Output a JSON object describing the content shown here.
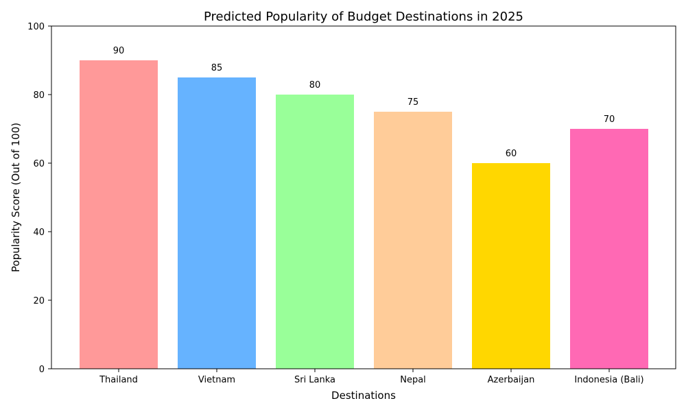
{
  "chart_data": {
    "type": "bar",
    "title": "Predicted Popularity of Budget Destinations in 2025",
    "xlabel": "Destinations",
    "ylabel": "Popularity Score (Out of 100)",
    "ylim": [
      0,
      100
    ],
    "yticks": [
      0,
      20,
      40,
      60,
      80,
      100
    ],
    "grid": false,
    "categories": [
      "Thailand",
      "Vietnam",
      "Sri Lanka",
      "Nepal",
      "Azerbaijan",
      "Indonesia (Bali)"
    ],
    "values": [
      90,
      85,
      80,
      75,
      60,
      70
    ],
    "colors": [
      "#ff9999",
      "#66b3ff",
      "#99ff99",
      "#ffcc99",
      "#ffd700",
      "#ff69b4"
    ],
    "data_labels": [
      "90",
      "85",
      "80",
      "75",
      "60",
      "70"
    ]
  }
}
